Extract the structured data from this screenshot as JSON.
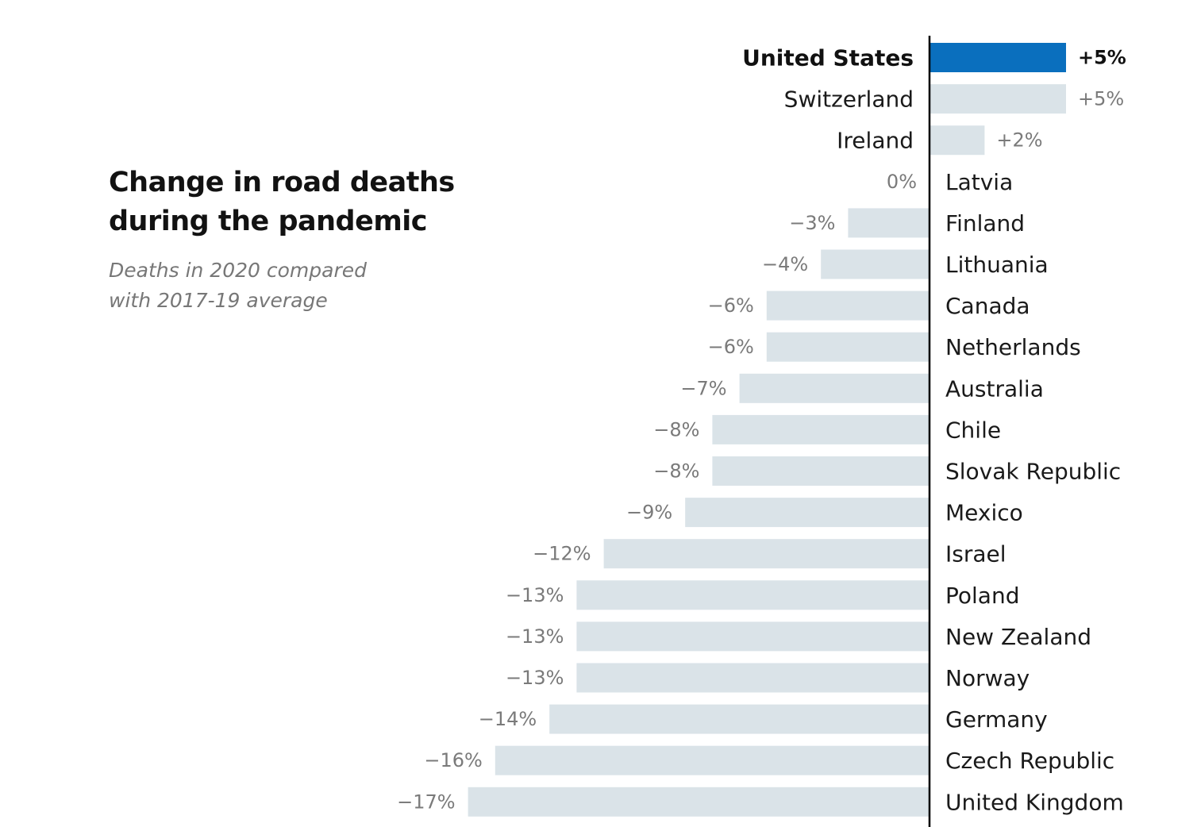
{
  "title_line1": "Change in road deaths",
  "title_line2": "during the pandemic",
  "subtitle_line1": "Deaths in 2020 compared",
  "subtitle_line2": "with 2017-19 average",
  "colors": {
    "highlight": "#0a6fbe",
    "bar": "#dae3e8",
    "axis": "#000000"
  },
  "chart_data": {
    "type": "bar",
    "orientation": "horizontal",
    "title": "Change in road deaths during the pandemic",
    "subtitle": "Deaths in 2020 compared with 2017-19 average",
    "highlight": "United States",
    "xlim": [
      -17,
      5
    ],
    "grid": false,
    "categories": [
      "United States",
      "Switzerland",
      "Ireland",
      "Latvia",
      "Finland",
      "Lithuania",
      "Canada",
      "Netherlands",
      "Australia",
      "Chile",
      "Slovak Republic",
      "Mexico",
      "Israel",
      "Poland",
      "New Zealand",
      "Norway",
      "Germany",
      "Czech Republic",
      "United Kingdom"
    ],
    "values": [
      5,
      5,
      2,
      0,
      -3,
      -4,
      -6,
      -6,
      -7,
      -8,
      -8,
      -9,
      -12,
      -13,
      -13,
      -13,
      -14,
      -16,
      -17
    ],
    "value_labels": [
      "+5%",
      "+5%",
      "+2%",
      "0%",
      "−3%",
      "−4%",
      "−6%",
      "−6%",
      "−7%",
      "−8%",
      "−8%",
      "−9%",
      "−12%",
      "−13%",
      "−13%",
      "−13%",
      "−14%",
      "−16%",
      "−17%"
    ]
  }
}
